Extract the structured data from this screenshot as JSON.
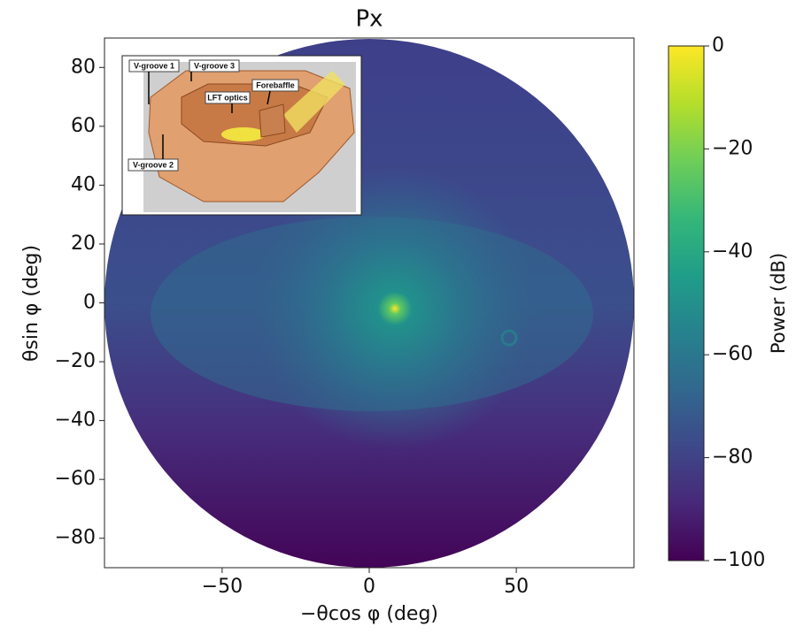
{
  "chart_data": {
    "type": "heatmap",
    "title": "Px",
    "xlabel": "−θcos φ (deg)",
    "ylabel": "θsin φ (deg)",
    "xlim": [
      -90,
      90
    ],
    "ylim": [
      -90,
      90
    ],
    "xticks": [
      {
        "value": -50,
        "label": "−50"
      },
      0,
      50
    ],
    "yticks": [
      {
        "value": -80,
        "label": "−80"
      },
      {
        "value": -60,
        "label": "−60"
      },
      {
        "value": -40,
        "label": "−40"
      },
      {
        "value": -20,
        "label": "−20"
      },
      0,
      20,
      40,
      60,
      80
    ],
    "colorbar": {
      "label": "Power (dB)",
      "colormap": "viridis",
      "lim": [
        -100,
        0
      ],
      "ticks": [
        {
          "value": -100,
          "label": "−100"
        },
        {
          "value": -80,
          "label": "−80"
        },
        {
          "value": -60,
          "label": "−60"
        },
        {
          "value": -40,
          "label": "−40"
        },
        {
          "value": -20,
          "label": "−20"
        },
        0
      ]
    },
    "annotations": [
      "V-groove 1",
      "V-groove 3",
      "LFT optics",
      "Forebaffle",
      "V-groove 2"
    ]
  }
}
